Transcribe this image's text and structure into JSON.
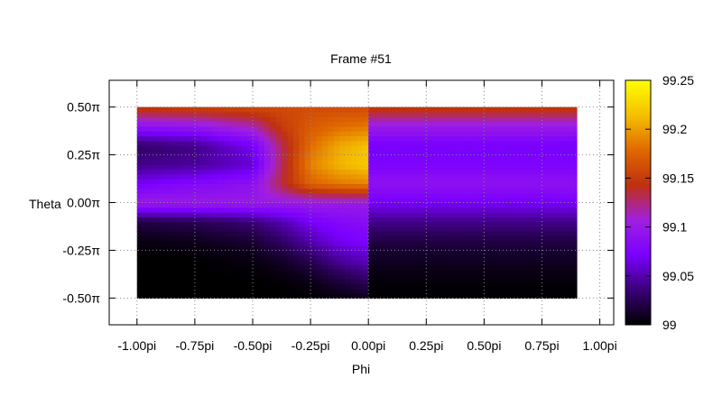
{
  "chart_data": {
    "type": "heatmap",
    "title": "Frame #51",
    "xlabel": "Phi",
    "ylabel": "Theta",
    "x_ticks": [
      "-1.00pi",
      "-0.75pi",
      "-0.50pi",
      "-0.25pi",
      "0.00pi",
      "0.25pi",
      "0.50pi",
      "0.75pi",
      "1.00pi"
    ],
    "x_tick_values": [
      -1.0,
      -0.75,
      -0.5,
      -0.25,
      0.0,
      0.25,
      0.5,
      0.75,
      1.0
    ],
    "y_ticks": [
      "0.50π",
      "0.25π",
      "0.00π",
      "-0.25π",
      "-0.50π"
    ],
    "y_tick_values": [
      0.5,
      0.25,
      0.0,
      -0.25,
      -0.5
    ],
    "xlim": [
      -1.12,
      1.06
    ],
    "ylim": [
      -0.64,
      0.64
    ],
    "data_extent": {
      "x": [
        -1.0,
        0.9
      ],
      "y": [
        -0.5,
        0.5
      ]
    },
    "grid": true,
    "colorbar": {
      "ticks": [
        "99",
        "99.05",
        "99.1",
        "99.15",
        "99.2",
        "99.25"
      ],
      "tick_values": [
        99.0,
        99.05,
        99.1,
        99.15,
        99.2,
        99.25
      ],
      "range": [
        99.0,
        99.25
      ],
      "colormap": [
        "#000000",
        "#3a0078",
        "#7a00ff",
        "#a020e0",
        "#c03010",
        "#e06800",
        "#f5c000",
        "#ffff00"
      ]
    },
    "left_region": {
      "phi": [
        -1.0,
        0.0
      ],
      "theta": [
        -0.5,
        -0.4,
        -0.3,
        -0.2,
        -0.1,
        0.0,
        0.1,
        0.2,
        0.3,
        0.4,
        0.5
      ],
      "phi_samples": [
        -1.0,
        -0.75,
        -0.5,
        -0.375,
        -0.25,
        -0.125,
        0.0
      ],
      "values": [
        [
          99.0,
          99.0,
          99.0,
          99.0,
          99.0,
          99.003,
          99.008
        ],
        [
          99.0,
          99.0,
          99.0,
          99.002,
          99.008,
          99.02,
          99.03
        ],
        [
          99.0,
          99.0,
          99.005,
          99.012,
          99.025,
          99.045,
          99.055
        ],
        [
          99.005,
          99.008,
          99.015,
          99.03,
          99.05,
          99.068,
          99.075
        ],
        [
          99.02,
          99.025,
          99.035,
          99.05,
          99.07,
          99.08,
          99.085
        ],
        [
          99.1,
          99.1,
          99.1,
          99.1,
          99.1,
          99.1,
          99.1
        ],
        [
          99.07,
          99.08,
          99.09,
          99.135,
          99.175,
          99.185,
          99.19
        ],
        [
          99.04,
          99.045,
          99.06,
          99.13,
          99.19,
          99.21,
          99.22
        ],
        [
          99.03,
          99.04,
          99.07,
          99.13,
          99.18,
          99.205,
          99.215
        ],
        [
          99.09,
          99.095,
          99.115,
          99.15,
          99.17,
          99.18,
          99.185
        ],
        [
          99.15,
          99.155,
          99.16,
          99.16,
          99.16,
          99.16,
          99.16
        ]
      ]
    },
    "right_region": {
      "phi": [
        0.0,
        0.9
      ],
      "theta": [
        -0.5,
        -0.4,
        -0.3,
        -0.2,
        -0.1,
        0.0,
        0.1,
        0.2,
        0.3,
        0.4,
        0.5
      ],
      "values": [
        99.0,
        99.003,
        99.01,
        99.02,
        99.04,
        99.07,
        99.09,
        99.075,
        99.07,
        99.1,
        99.15
      ]
    }
  }
}
